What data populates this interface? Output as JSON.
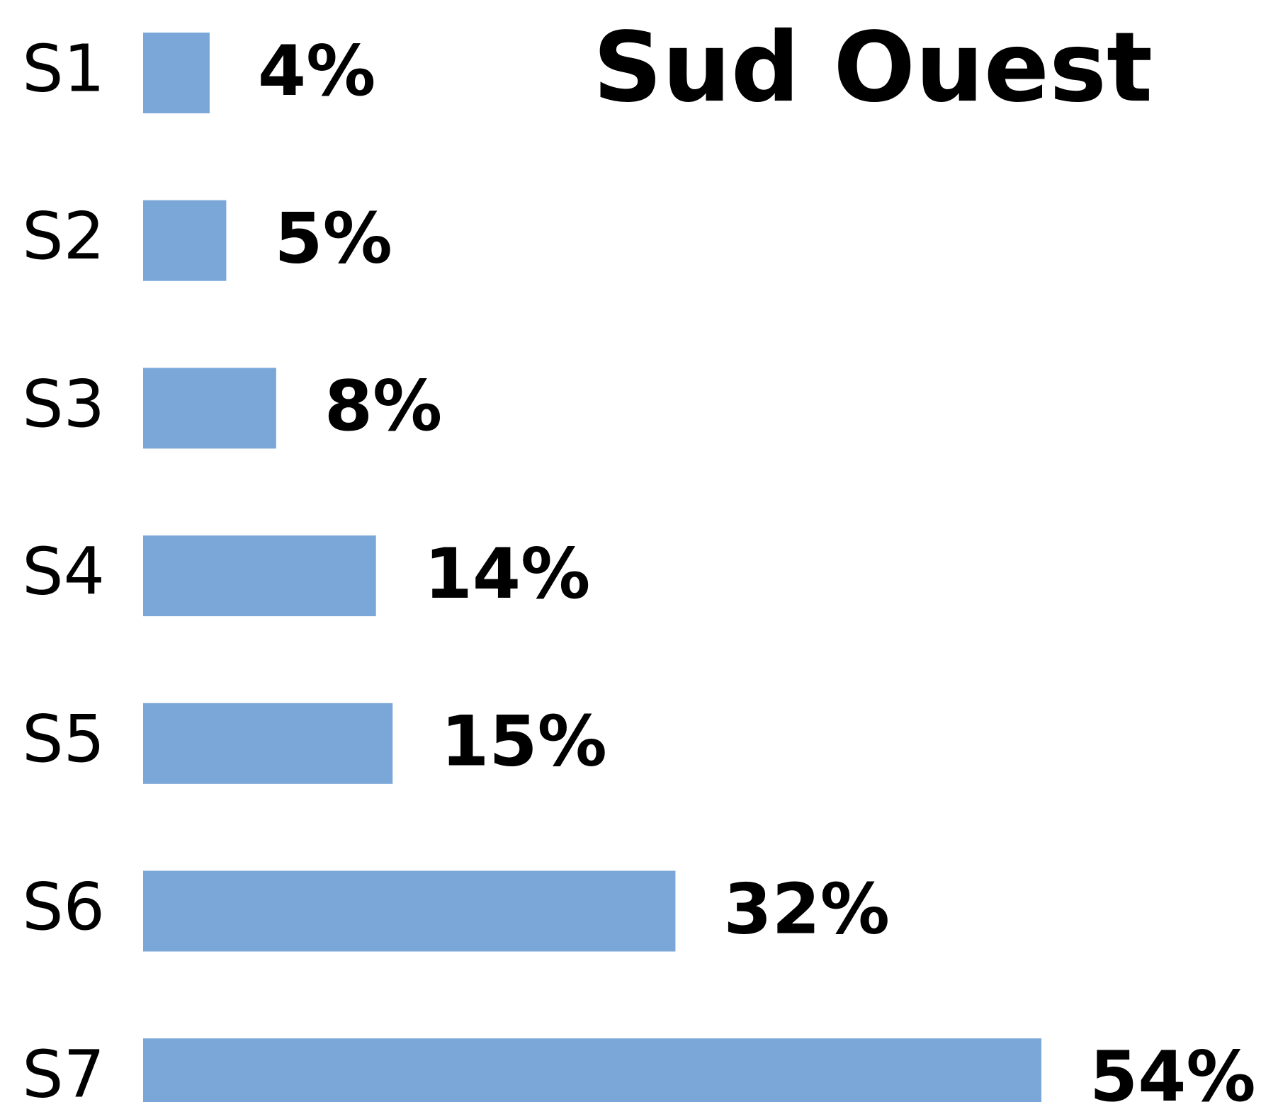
{
  "chart_data": {
    "type": "bar",
    "orientation": "horizontal",
    "title": "Sud Ouest",
    "categories": [
      "S1",
      "S2",
      "S3",
      "S4",
      "S5",
      "S6",
      "S7"
    ],
    "values": [
      4,
      5,
      8,
      14,
      15,
      32,
      54
    ],
    "value_labels": [
      "4%",
      "5%",
      "8%",
      "14%",
      "15%",
      "32%",
      "54%"
    ],
    "color": "#7aa7d8"
  }
}
